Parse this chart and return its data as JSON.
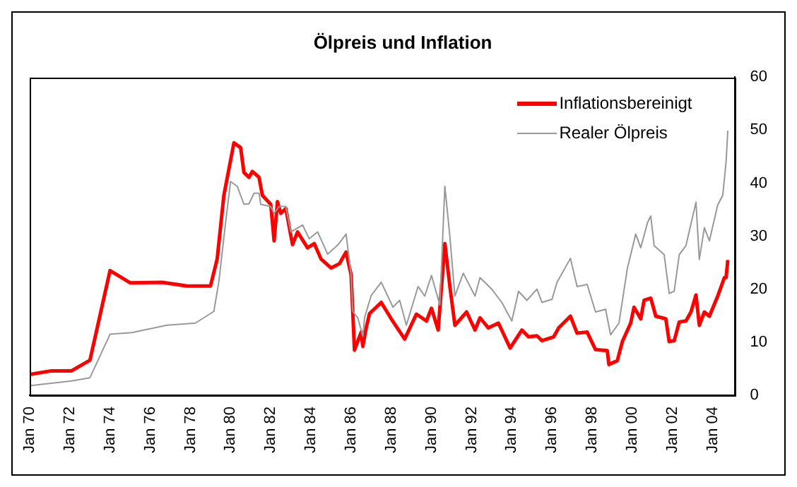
{
  "chart_data": {
    "type": "line",
    "title": "Ölpreis und Inflation",
    "xlim": [
      "1970-01",
      "2005-02"
    ],
    "xticks": [
      {
        "value": "1970-01",
        "label": "Jan 70"
      },
      {
        "value": "1972-01",
        "label": "Jan 72"
      },
      {
        "value": "1974-01",
        "label": "Jan 74"
      },
      {
        "value": "1976-01",
        "label": "Jan 76"
      },
      {
        "value": "1978-01",
        "label": "Jan 78"
      },
      {
        "value": "1980-01",
        "label": "Jan 80"
      },
      {
        "value": "1982-01",
        "label": "Jan 82"
      },
      {
        "value": "1984-01",
        "label": "Jan 84"
      },
      {
        "value": "1986-01",
        "label": "Jan 86"
      },
      {
        "value": "1988-01",
        "label": "Jan 88"
      },
      {
        "value": "1990-01",
        "label": "Jan 90"
      },
      {
        "value": "1992-01",
        "label": "Jan 92"
      },
      {
        "value": "1994-01",
        "label": "Jan 94"
      },
      {
        "value": "1996-01",
        "label": "Jan 96"
      },
      {
        "value": "1998-01",
        "label": "Jan 98"
      },
      {
        "value": "2000-01",
        "label": "Jan 00"
      },
      {
        "value": "2002-01",
        "label": "Jan 02"
      },
      {
        "value": "2004-01",
        "label": "Jan 04"
      }
    ],
    "ylim": [
      0,
      60
    ],
    "yticks": [
      0,
      10,
      20,
      30,
      40,
      50,
      60
    ],
    "grid": false,
    "legend": "top right",
    "marker": "none",
    "line_style": "solid",
    "series": [
      {
        "name": "Inflationsbereinigt",
        "color": "#ff0000",
        "x": [
          "1970-01",
          "1971-02",
          "1972-02",
          "1973-01",
          "1974-01",
          "1975-01",
          "1976-08",
          "1977-11",
          "1979-01",
          "1979-05",
          "1979-09",
          "1980-03",
          "1980-07",
          "1980-09",
          "1980-12",
          "1981-02",
          "1981-06",
          "1981-08",
          "1982-01",
          "1982-03",
          "1982-05",
          "1982-07",
          "1982-10",
          "1983-02",
          "1983-05",
          "1983-11",
          "1984-03",
          "1984-07",
          "1985-01",
          "1985-06",
          "1985-10",
          "1986-01",
          "1986-03",
          "1986-07",
          "1986-08",
          "1986-10",
          "1986-12",
          "1987-07",
          "1988-01",
          "1988-09",
          "1989-04",
          "1989-10",
          "1990-01",
          "1990-05",
          "1990-09",
          "1990-12",
          "1991-03",
          "1991-10",
          "1992-03",
          "1992-06",
          "1992-11",
          "1993-05",
          "1993-12",
          "1994-07",
          "1994-11",
          "1995-04",
          "1995-07",
          "1996-02",
          "1996-05",
          "1996-12",
          "1997-04",
          "1997-10",
          "1998-03",
          "1998-10",
          "1998-11",
          "1999-04",
          "1999-07",
          "1999-12",
          "2000-02",
          "2000-06",
          "2000-08",
          "2000-12",
          "2001-03",
          "2001-09",
          "2001-11",
          "2002-02",
          "2002-05",
          "2002-09",
          "2002-12",
          "2003-03",
          "2003-05",
          "2003-08",
          "2003-11",
          "2004-04",
          "2004-08",
          "2004-09",
          "2004-10"
        ],
        "values": [
          3.9,
          4.6,
          4.6,
          6.6,
          23.5,
          21.2,
          21.3,
          20.6,
          20.6,
          25.7,
          37.7,
          47.6,
          46.7,
          42,
          41.1,
          42.2,
          41.1,
          37.7,
          36,
          29.1,
          36.5,
          34.3,
          35.2,
          28.4,
          30.8,
          27.8,
          28.6,
          25.7,
          24,
          24.8,
          27,
          22.7,
          8.5,
          11.9,
          9.2,
          12.7,
          15.4,
          17.5,
          14.4,
          10.6,
          15.3,
          14,
          16.4,
          12.3,
          28.6,
          20.5,
          13.2,
          15.7,
          12.3,
          14.6,
          12.7,
          13.6,
          8.9,
          12.3,
          11,
          11.2,
          10.3,
          11,
          12.7,
          14.9,
          11.7,
          11.9,
          8.6,
          8.4,
          5.8,
          6.5,
          10.1,
          13.6,
          16.6,
          14.4,
          17.9,
          18.3,
          14.9,
          14.4,
          10.1,
          10.3,
          13.8,
          14,
          15.7,
          18.9,
          13.2,
          15.7,
          14.9,
          18.7,
          22.2,
          22.2,
          25.5
        ]
      },
      {
        "name": "Realer Ölpreis",
        "color": "#999999",
        "x": [
          "1970-01",
          "1972-02",
          "1973-01",
          "1974-01",
          "1975-02",
          "1976-11",
          "1978-04",
          "1979-03",
          "1979-06",
          "1979-10",
          "1980-01",
          "1980-05",
          "1980-09",
          "1980-12",
          "1981-03",
          "1981-06",
          "1981-07",
          "1982-01",
          "1982-03",
          "1982-06",
          "1982-10",
          "1983-01",
          "1983-08",
          "1983-12",
          "1984-05",
          "1984-11",
          "1985-05",
          "1985-10",
          "1986-01",
          "1986-02",
          "1986-05",
          "1986-08",
          "1986-09",
          "1987-01",
          "1987-07",
          "1988-02",
          "1988-06",
          "1988-10",
          "1989-05",
          "1989-09",
          "1990-01",
          "1990-06",
          "1990-09",
          "1990-12",
          "1991-03",
          "1991-08",
          "1992-03",
          "1992-06",
          "1993-01",
          "1993-07",
          "1994-01",
          "1994-05",
          "1994-10",
          "1995-04",
          "1995-07",
          "1996-01",
          "1996-04",
          "1996-12",
          "1997-04",
          "1997-10",
          "1998-03",
          "1998-09",
          "1998-12",
          "1999-05",
          "1999-10",
          "2000-03",
          "2000-06",
          "2000-10",
          "2000-12",
          "2001-02",
          "2001-08",
          "2001-11",
          "2002-02",
          "2002-05",
          "2002-09",
          "2003-03",
          "2003-05",
          "2003-08",
          "2003-11",
          "2004-04",
          "2004-07",
          "2004-09",
          "2004-10"
        ],
        "values": [
          1.8,
          2.7,
          3.3,
          11.5,
          11.8,
          13.2,
          13.6,
          15.8,
          21.4,
          32.5,
          40.3,
          39.4,
          36,
          36.1,
          38.1,
          38.1,
          36,
          35.6,
          34.3,
          35.6,
          35.6,
          30.8,
          32.1,
          29.5,
          30.8,
          26.6,
          28.3,
          30.4,
          22.7,
          15.8,
          14.6,
          11.1,
          14.6,
          18.8,
          21.3,
          16.6,
          17.9,
          13.2,
          20.5,
          18.7,
          22.6,
          17,
          39.4,
          29.9,
          18.7,
          23,
          18.7,
          22.2,
          20,
          17.5,
          14,
          19.6,
          17.9,
          20,
          17.5,
          18.1,
          21.3,
          25.8,
          20.5,
          20.9,
          15.7,
          16.2,
          11.4,
          13.6,
          23.9,
          30.4,
          27.8,
          32.5,
          33.8,
          28.2,
          26.5,
          19.2,
          19.6,
          26.5,
          28.2,
          36.4,
          25.6,
          31.6,
          29.1,
          35.9,
          37.7,
          44.1,
          49.9
        ]
      }
    ]
  }
}
